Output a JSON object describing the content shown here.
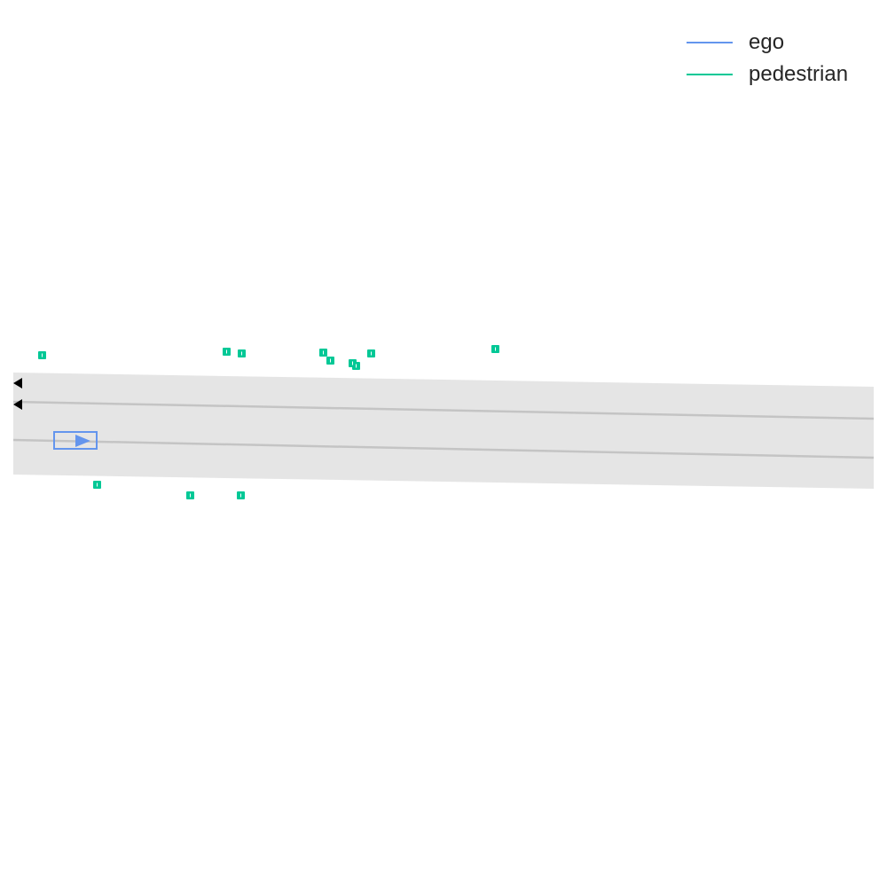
{
  "legend": {
    "items": [
      {
        "label": "ego",
        "color": "#6495ED"
      },
      {
        "label": "pedestrian",
        "color": "#00C896"
      }
    ]
  },
  "colors": {
    "road": "#E5E5E5",
    "lane_line": "#C4C4C4",
    "ego": "#6495ED",
    "pedestrian": "#00C896",
    "marker": "#000000"
  },
  "icons": {
    "ego_heading": "triangle-right",
    "lane_start_markers": "triangle-left"
  }
}
